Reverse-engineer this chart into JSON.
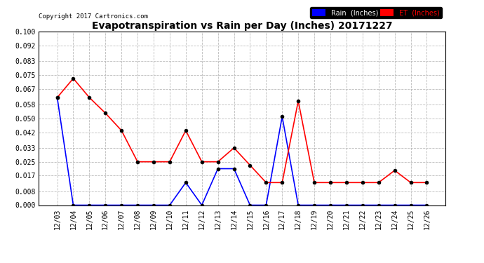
{
  "title": "Evapotranspiration vs Rain per Day (Inches) 20171227",
  "copyright": "Copyright 2017 Cartronics.com",
  "x_labels": [
    "12/03",
    "12/04",
    "12/05",
    "12/06",
    "12/07",
    "12/08",
    "12/09",
    "12/10",
    "12/11",
    "12/12",
    "12/13",
    "12/14",
    "12/15",
    "12/16",
    "12/17",
    "12/18",
    "12/19",
    "12/20",
    "12/21",
    "12/22",
    "12/23",
    "12/24",
    "12/25",
    "12/26"
  ],
  "rain_inches": [
    0.062,
    0.0,
    0.0,
    0.0,
    0.0,
    0.0,
    0.0,
    0.0,
    0.013,
    0.0,
    0.021,
    0.021,
    0.0,
    0.0,
    0.051,
    0.0,
    0.0,
    0.0,
    0.0,
    0.0,
    0.0,
    0.0,
    0.0,
    0.0
  ],
  "et_inches": [
    0.062,
    0.073,
    0.062,
    0.053,
    0.043,
    0.025,
    0.025,
    0.025,
    0.043,
    0.025,
    0.025,
    0.033,
    0.023,
    0.013,
    0.013,
    0.06,
    0.013,
    0.013,
    0.013,
    0.013,
    0.013,
    0.02,
    0.013,
    0.013
  ],
  "rain_color": "#0000ff",
  "et_color": "#ff0000",
  "background_color": "#ffffff",
  "grid_color": "#bbbbbb",
  "ylim": [
    0.0,
    0.1
  ],
  "yticks": [
    0.0,
    0.008,
    0.017,
    0.025,
    0.033,
    0.042,
    0.05,
    0.058,
    0.067,
    0.075,
    0.083,
    0.092,
    0.1
  ],
  "legend_rain_label": "Rain  (Inches)",
  "legend_et_label": "ET  (Inches)"
}
